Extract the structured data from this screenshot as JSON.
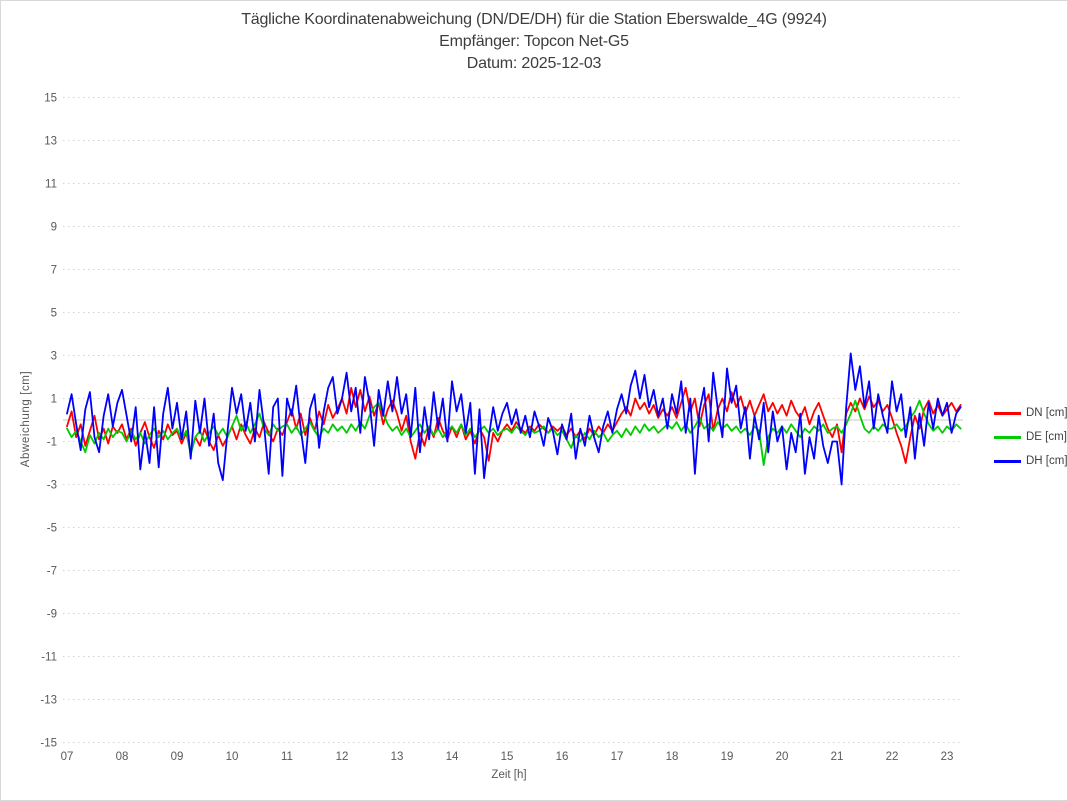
{
  "header": {
    "title": "Tägliche Koordinatenabweichung (DN/DE/DH) für die Station Eberswalde_4G (9924)",
    "subtitle_receiver": "Empfänger: Topcon Net-G5",
    "subtitle_date": "Datum: 2025-12-03"
  },
  "chart_data": {
    "type": "line",
    "title": "Tägliche Koordinatenabweichung (DN/DE/DH) für die Station Eberswalde_4G (9924)",
    "subtitle1": "Empfänger: Topcon Net-G5",
    "subtitle2": "Datum: 2025-12-03",
    "xlabel": "Zeit [h]",
    "ylabel": "Abweichung [cm]",
    "xlim": [
      7,
      23.3
    ],
    "ylim": [
      -15,
      15
    ],
    "xticks": [
      "07",
      "08",
      "09",
      "10",
      "11",
      "12",
      "13",
      "14",
      "15",
      "16",
      "17",
      "18",
      "19",
      "20",
      "21",
      "22",
      "23"
    ],
    "yticks": [
      15,
      13,
      11,
      9,
      7,
      5,
      3,
      1,
      -1,
      -3,
      -5,
      -7,
      -9,
      -11,
      -13,
      -15
    ],
    "grid": "horizontal dotted lines at odd values, solid light gray zero line",
    "legend_position": "right",
    "x_start": 7,
    "x_step": 0.0833333,
    "n_points": 196,
    "colors": {
      "grid": "#d2d2d2",
      "zero_line": "#c4c4c4",
      "tick_text": "#595959",
      "title_text": "#3d3d3d"
    },
    "series": [
      {
        "name": "DN [cm]",
        "color": "#ff0000",
        "values": [
          -0.3,
          0.4,
          -0.8,
          -0.2,
          -1.2,
          -0.5,
          0.2,
          -0.9,
          -0.4,
          -1.1,
          -0.3,
          -0.6,
          -0.2,
          -0.9,
          -0.4,
          -1.2,
          -0.6,
          -0.1,
          -0.8,
          -1.3,
          -0.5,
          -0.9,
          -0.2,
          -0.7,
          -0.5,
          -1.1,
          -0.6,
          -1.5,
          -0.8,
          -1.2,
          -0.4,
          -1.0,
          -1.4,
          -0.7,
          -1.2,
          -0.8,
          -0.3,
          -0.9,
          -0.2,
          -0.7,
          -1.1,
          -0.4,
          -0.8,
          -0.1,
          -0.6,
          -1.0,
          -0.4,
          -0.7,
          -0.1,
          0.5,
          -0.4,
          0.3,
          -0.7,
          0.1,
          -0.5,
          0.4,
          -0.2,
          0.7,
          0.1,
          0.5,
          1.0,
          0.3,
          1.5,
          0.6,
          1.4,
          0.4,
          1.1,
          0.2,
          0.8,
          -0.2,
          0.5,
          0.9,
          0.3,
          -0.5,
          0.2,
          -1.0,
          -1.8,
          -0.6,
          -1.2,
          -0.3,
          -0.8,
          0.1,
          -0.5,
          -0.9,
          -0.3,
          -0.8,
          -0.2,
          -0.9,
          -0.5,
          -1.1,
          -0.4,
          -0.8,
          -1.9,
          -0.6,
          -1.0,
          -0.5,
          -0.2,
          -0.5,
          -0.1,
          -0.4,
          -0.6,
          -0.3,
          -0.5,
          -0.2,
          -0.4,
          -0.6,
          -0.3,
          -0.5,
          -0.3,
          -0.7,
          -0.4,
          -0.8,
          -0.5,
          -0.9,
          -0.4,
          -0.7,
          -0.3,
          -0.6,
          -0.2,
          -0.5,
          -0.1,
          0.3,
          0.6,
          0.2,
          1.0,
          0.5,
          0.8,
          0.3,
          0.7,
          0.1,
          0.5,
          0.2,
          0.6,
          0.1,
          0.8,
          1.5,
          0.4,
          1.0,
          -0.3,
          0.7,
          1.2,
          -0.5,
          0.5,
          1.0,
          0.4,
          1.3,
          0.6,
          1.1,
          0.3,
          0.9,
          0.2,
          0.7,
          1.2,
          0.4,
          0.8,
          0.3,
          0.7,
          0.2,
          0.9,
          0.4,
          0.1,
          0.6,
          -0.2,
          0.4,
          0.8,
          0.2,
          -0.4,
          -0.8,
          -0.2,
          -1.5,
          0.3,
          0.8,
          0.4,
          1.0,
          0.5,
          1.1,
          0.6,
          0.9,
          0.4,
          0.7,
          0.1,
          -0.6,
          -1.2,
          -2.0,
          -0.8,
          0.2,
          -0.4,
          0.5,
          0.9,
          0.3,
          0.7,
          0.2,
          0.5,
          0.8,
          0.4,
          0.7
        ]
      },
      {
        "name": "DE [cm]",
        "color": "#00cc00",
        "values": [
          -0.4,
          -0.8,
          -0.5,
          -1.0,
          -1.5,
          -0.7,
          -1.1,
          -0.6,
          -0.9,
          -0.4,
          -0.8,
          -0.5,
          -0.6,
          -1.0,
          -0.5,
          -0.9,
          -0.6,
          -1.1,
          -0.7,
          -0.4,
          -0.8,
          -0.5,
          -0.9,
          -0.6,
          -0.4,
          -0.9,
          -0.5,
          -1.6,
          -0.8,
          -0.5,
          -1.0,
          -0.6,
          -0.3,
          -0.7,
          -0.4,
          -0.8,
          -0.3,
          0.2,
          -0.5,
          -0.1,
          -0.6,
          -0.2,
          0.3,
          -0.4,
          -0.7,
          -0.2,
          -0.5,
          -0.3,
          -0.2,
          -0.6,
          -0.3,
          -0.7,
          -0.4,
          -0.1,
          -0.5,
          -0.8,
          -0.4,
          -0.6,
          -0.2,
          -0.5,
          -0.3,
          -0.6,
          -0.2,
          -0.5,
          -0.1,
          -0.4,
          0.2,
          0.6,
          0.8,
          0.3,
          -0.2,
          -0.5,
          -0.3,
          -0.7,
          -0.4,
          -0.8,
          -0.5,
          -0.2,
          -0.6,
          -0.3,
          -0.7,
          -0.4,
          -0.8,
          -0.5,
          -0.3,
          -0.6,
          -0.2,
          -0.7,
          -0.4,
          -0.8,
          -0.5,
          -0.3,
          -0.6,
          -0.4,
          -0.7,
          -0.5,
          -0.4,
          -0.6,
          -0.3,
          -0.5,
          -0.7,
          -0.4,
          -0.6,
          -0.5,
          -0.3,
          -0.6,
          -0.4,
          -0.7,
          -0.5,
          -0.9,
          -1.3,
          -0.7,
          -1.0,
          -0.6,
          -0.9,
          -0.5,
          -0.8,
          -0.6,
          -1.0,
          -0.7,
          -0.5,
          -0.8,
          -0.4,
          -0.7,
          -0.3,
          -0.6,
          -0.2,
          -0.5,
          -0.3,
          -0.6,
          -0.4,
          -0.2,
          -0.4,
          -0.1,
          -0.5,
          -0.2,
          -0.6,
          -0.3,
          0.1,
          -0.4,
          -0.2,
          -0.5,
          -0.1,
          -0.4,
          -0.2,
          -0.5,
          -0.3,
          -0.6,
          -0.4,
          -0.7,
          -0.3,
          -0.5,
          -2.1,
          -0.8,
          -0.4,
          -0.6,
          -0.3,
          -0.6,
          -0.2,
          -0.5,
          -0.8,
          -0.4,
          -0.6,
          -0.3,
          -0.5,
          -0.2,
          -0.6,
          -0.4,
          -0.3,
          -0.6,
          -0.2,
          0.3,
          0.9,
          0.2,
          -0.4,
          -0.6,
          -0.3,
          -0.5,
          -0.2,
          -0.4,
          -0.4,
          -0.2,
          -0.5,
          -0.3,
          0.1,
          0.4,
          0.9,
          0.3,
          -0.2,
          -0.5,
          -0.3,
          -0.6,
          -0.3,
          -0.5,
          -0.2,
          -0.4
        ]
      },
      {
        "name": "DH [cm]",
        "color": "#0000ff",
        "values": [
          0.3,
          1.2,
          -0.2,
          -1.4,
          0.5,
          1.3,
          -0.8,
          -1.5,
          0.2,
          1.2,
          -0.3,
          0.8,
          1.4,
          0.2,
          -1.0,
          0.6,
          -2.3,
          -0.5,
          -2.0,
          0.6,
          -2.2,
          0.3,
          1.5,
          -0.4,
          0.8,
          -0.9,
          0.4,
          -1.8,
          0.9,
          -0.6,
          1.0,
          -1.2,
          0.3,
          -2.0,
          -2.8,
          -0.6,
          1.5,
          0.3,
          1.2,
          -0.5,
          0.8,
          -1.0,
          1.4,
          -0.3,
          -2.5,
          0.6,
          1.0,
          -2.6,
          1.0,
          0.2,
          1.6,
          -0.4,
          -2.0,
          0.5,
          1.2,
          -1.3,
          0.4,
          1.5,
          2.0,
          0.3,
          1.0,
          2.2,
          0.4,
          1.5,
          -0.6,
          2.0,
          0.8,
          -1.2,
          1.4,
          0.2,
          1.8,
          0.4,
          2.0,
          0.3,
          1.2,
          -0.8,
          1.5,
          -1.5,
          0.6,
          -0.9,
          1.3,
          -0.4,
          1.0,
          -1.0,
          1.8,
          0.4,
          1.2,
          -0.6,
          0.8,
          -2.5,
          0.5,
          -2.7,
          -0.8,
          0.6,
          -0.5,
          0.3,
          0.8,
          -0.2,
          0.5,
          -0.6,
          0.2,
          -0.8,
          0.4,
          -0.3,
          -1.2,
          0.1,
          -0.5,
          -1.6,
          -0.2,
          -0.9,
          0.3,
          -1.8,
          -0.4,
          -1.2,
          0.2,
          -0.8,
          -1.5,
          -0.3,
          0.4,
          -0.6,
          0.5,
          1.2,
          0.3,
          1.6,
          2.3,
          1.0,
          2.1,
          0.6,
          1.4,
          0.2,
          1.0,
          -0.4,
          1.2,
          0.3,
          1.8,
          -0.6,
          1.0,
          -2.5,
          0.4,
          1.5,
          -1.0,
          2.2,
          0.5,
          -0.8,
          2.4,
          0.8,
          1.6,
          -0.4,
          0.6,
          -1.8,
          0.2,
          -0.9,
          0.8,
          -1.5,
          0.4,
          -1.0,
          -0.3,
          -2.3,
          -0.6,
          -1.5,
          0.3,
          -2.5,
          -0.8,
          -1.8,
          0.2,
          -1.2,
          -2.0,
          -1.0,
          -1.0,
          -3.0,
          0.6,
          3.1,
          1.4,
          2.5,
          0.6,
          1.8,
          -0.4,
          1.2,
          0.2,
          -0.6,
          1.8,
          0.4,
          1.2,
          -0.8,
          0.6,
          -1.8,
          0.3,
          -1.2,
          0.8,
          -0.4,
          1.0,
          0.2,
          0.8,
          -0.6,
          0.3,
          0.6
        ]
      }
    ]
  }
}
